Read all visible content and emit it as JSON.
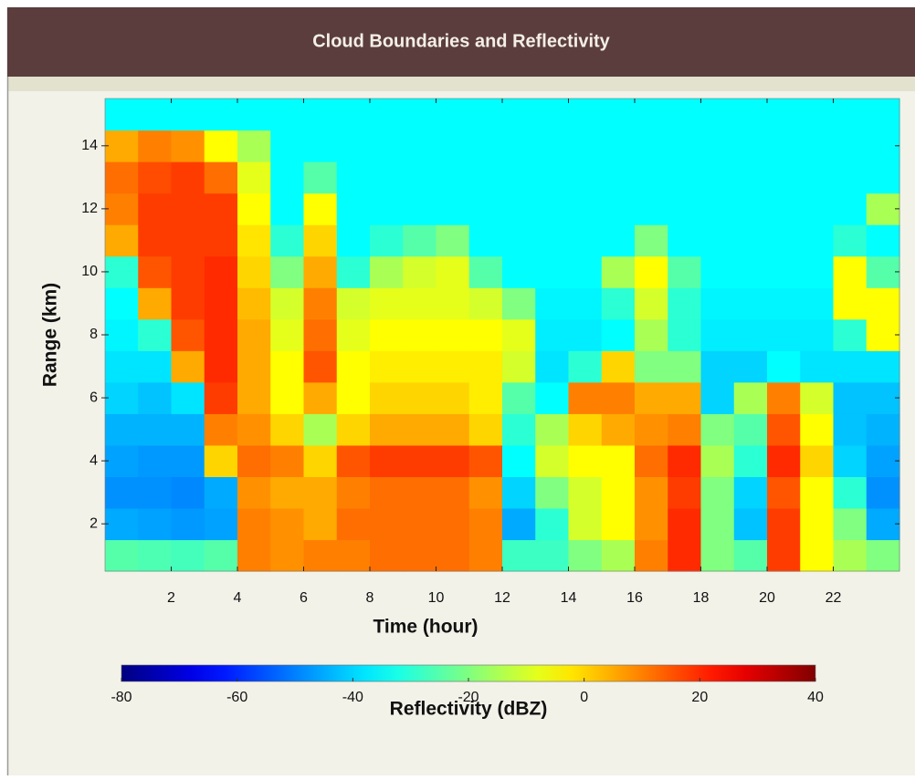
{
  "chart_data": {
    "type": "heatmap",
    "title": "Cloud Boundaries and Reflectivity",
    "xlabel": "Time (hour)",
    "ylabel": "Range (km)",
    "x": [
      0.5,
      1.5,
      2.5,
      3.5,
      4.5,
      5.5,
      6.5,
      7.5,
      8.5,
      9.5,
      10.5,
      11.5,
      12.5,
      13.5,
      14.5,
      15.5,
      16.5,
      17.5,
      18.5,
      19.5,
      20.5,
      21.5,
      22.5,
      23.5
    ],
    "y": [
      1,
      2,
      3,
      4,
      5,
      6,
      7,
      8,
      9,
      10,
      11,
      12,
      13,
      14,
      15
    ],
    "xlim": [
      0,
      24
    ],
    "xticks": [
      2,
      4,
      6,
      8,
      10,
      12,
      14,
      16,
      18,
      20,
      22
    ],
    "ylim": [
      0.5,
      15.5
    ],
    "yticks": [
      2,
      4,
      6,
      8,
      10,
      12,
      14
    ],
    "z": [
      [
        -25,
        -26,
        -27,
        -25,
        10,
        8,
        10,
        10,
        12,
        12,
        12,
        10,
        -28,
        -28,
        -20,
        -15,
        10,
        20,
        -20,
        -25,
        18,
        -5,
        -15,
        -20
      ],
      [
        -45,
        -46,
        -47,
        -46,
        10,
        8,
        5,
        12,
        12,
        12,
        12,
        10,
        -45,
        -30,
        -10,
        -5,
        8,
        20,
        -20,
        -42,
        18,
        -5,
        -20,
        -45
      ],
      [
        -48,
        -48,
        -49,
        -45,
        8,
        5,
        5,
        10,
        12,
        12,
        12,
        8,
        -40,
        -20,
        -10,
        -5,
        8,
        18,
        -20,
        -40,
        15,
        -5,
        -30,
        -48
      ],
      [
        -46,
        -47,
        -47,
        0,
        12,
        10,
        0,
        15,
        18,
        18,
        18,
        15,
        -35,
        -10,
        -5,
        -5,
        12,
        20,
        -15,
        -30,
        20,
        0,
        -40,
        -46
      ],
      [
        -44,
        -44,
        -44,
        10,
        8,
        0,
        -15,
        0,
        5,
        5,
        5,
        0,
        -30,
        -15,
        0,
        5,
        8,
        10,
        -20,
        -25,
        15,
        -5,
        -42,
        -44
      ],
      [
        -40,
        -42,
        -38,
        18,
        5,
        -5,
        5,
        -5,
        0,
        0,
        0,
        -3,
        -25,
        -35,
        10,
        10,
        5,
        5,
        -40,
        -15,
        10,
        -10,
        -42,
        -42
      ],
      [
        -38,
        -38,
        5,
        20,
        5,
        -5,
        15,
        -5,
        -3,
        -3,
        -3,
        -3,
        -10,
        -38,
        -30,
        0,
        -20,
        -20,
        -40,
        -40,
        -35,
        -38,
        -38,
        -38
      ],
      [
        -36,
        -30,
        15,
        20,
        5,
        -8,
        12,
        -8,
        -5,
        -5,
        -5,
        -5,
        -8,
        -37,
        -37,
        -35,
        -15,
        -30,
        -37,
        -37,
        -37,
        -37,
        -30,
        -5
      ],
      [
        -35,
        5,
        18,
        20,
        3,
        -10,
        10,
        -10,
        -8,
        -8,
        -8,
        -10,
        -20,
        -36,
        -36,
        -30,
        -10,
        -30,
        -36,
        -36,
        -36,
        -36,
        -5,
        -5
      ],
      [
        -30,
        15,
        18,
        20,
        0,
        -20,
        5,
        -30,
        -15,
        -10,
        -8,
        -25,
        -35,
        -35,
        -35,
        -15,
        -5,
        -25,
        -35,
        -35,
        -35,
        -35,
        -5,
        -25
      ],
      [
        5,
        18,
        18,
        18,
        -2,
        -30,
        0,
        -35,
        -30,
        -25,
        -20,
        -35,
        -35,
        -35,
        -35,
        -35,
        -20,
        -35,
        -35,
        -35,
        -35,
        -35,
        -30,
        -35
      ],
      [
        10,
        18,
        18,
        18,
        -5,
        -35,
        -5,
        -35,
        -35,
        -35,
        -35,
        -35,
        -35,
        -35,
        -35,
        -35,
        -35,
        -35,
        -35,
        -35,
        -35,
        -35,
        -35,
        -15
      ],
      [
        12,
        16,
        18,
        12,
        -8,
        -35,
        -25,
        -35,
        -35,
        -35,
        -35,
        -35,
        -35,
        -35,
        -35,
        -35,
        -35,
        -35,
        -35,
        -35,
        -35,
        -35,
        -35,
        -35
      ],
      [
        5,
        10,
        8,
        -5,
        -15,
        -35,
        -35,
        -35,
        -35,
        -35,
        -35,
        -35,
        -35,
        -35,
        -35,
        -35,
        -35,
        -35,
        -35,
        -35,
        -35,
        -35,
        -35,
        -35
      ],
      [
        -35,
        -35,
        -35,
        -35,
        -35,
        -35,
        -35,
        -35,
        -35,
        -35,
        -35,
        -35,
        -35,
        -35,
        -35,
        -35,
        -35,
        -35,
        -35,
        -35,
        -35,
        -35,
        -35,
        -35
      ]
    ],
    "colormap": "jet",
    "colorbar": {
      "label": "Reflectivity (dBZ)",
      "lim": [
        -80,
        40
      ],
      "ticks": [
        -80,
        -60,
        -40,
        -20,
        0,
        20,
        40
      ]
    }
  }
}
